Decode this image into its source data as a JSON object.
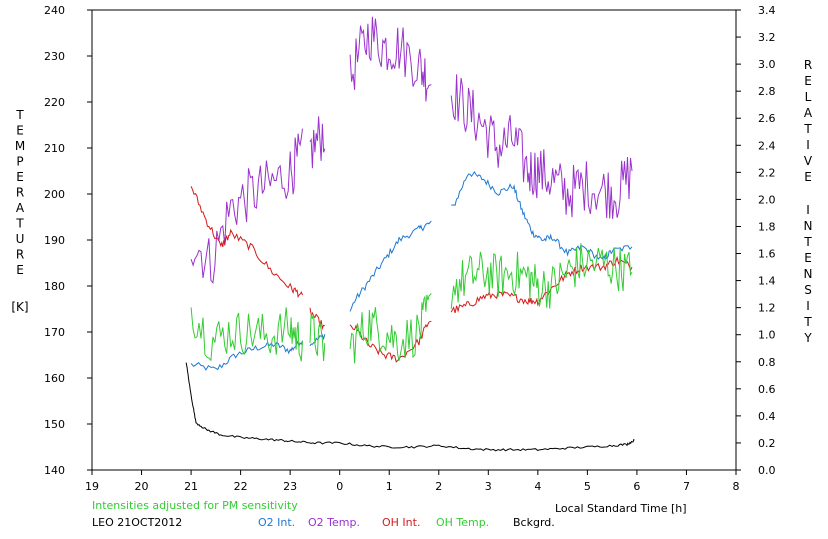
{
  "chart_data": {
    "type": "line",
    "title": "",
    "xlabel": "Local Standard Time [h]",
    "ylabel_left_letters": [
      "T",
      "E",
      "M",
      "P",
      "E",
      "R",
      "A",
      "T",
      "U",
      "R",
      "E"
    ],
    "ylabel_left_unit": "[K]",
    "ylabel_right_letters": [
      "R",
      "E",
      "L",
      "A",
      "T",
      "I",
      "V",
      "E",
      "I",
      "N",
      "T",
      "E",
      "N",
      "S",
      "I",
      "T",
      "Y"
    ],
    "x_ticks": [
      "19",
      "20",
      "21",
      "22",
      "23",
      "0",
      "1",
      "2",
      "3",
      "4",
      "5",
      "6",
      "7",
      "8"
    ],
    "xlim": [
      19,
      32
    ],
    "y_left_ticks": [
      "140",
      "150",
      "160",
      "170",
      "180",
      "190",
      "200",
      "210",
      "220",
      "230",
      "240"
    ],
    "ylim_left": [
      140,
      240
    ],
    "y_right_ticks": [
      "0.0",
      "0.2",
      "0.4",
      "0.6",
      "0.8",
      "1.0",
      "1.2",
      "1.4",
      "1.6",
      "1.8",
      "2.0",
      "2.2",
      "2.4",
      "2.6",
      "2.8",
      "3.0",
      "3.2",
      "3.4"
    ],
    "ylim_right": [
      0,
      3.4
    ],
    "note": "Intensities adjusted for PM sensitivity",
    "station_label": "LEO 21OCT2012",
    "series": [
      {
        "name": "O2 Int.",
        "axis": "right",
        "color": "#1f78d1",
        "noise": 0.025,
        "x": [
          21.0,
          21.5,
          21.9,
          22.3,
          22.7,
          23.0,
          23.2,
          23.45,
          23.7,
          24.0,
          24.3,
          24.6,
          24.9,
          25.2,
          25.6,
          25.8,
          26.3,
          26.6,
          26.9,
          27.2,
          27.5,
          27.7,
          27.9,
          28.1,
          28.3,
          28.6,
          28.9,
          29.3,
          29.5,
          29.9
        ],
        "y": [
          0.78,
          0.74,
          0.85,
          0.9,
          0.93,
          0.88,
          0.95,
          0.94,
          1.0,
          1.0,
          1.25,
          1.4,
          1.55,
          1.7,
          1.78,
          1.82,
          1.95,
          2.2,
          2.15,
          2.05,
          2.1,
          1.9,
          1.75,
          1.7,
          1.72,
          1.6,
          1.65,
          1.55,
          1.62,
          1.65
        ]
      },
      {
        "name": "O2 Temp.",
        "axis": "left",
        "color": "#9933cc",
        "noise": 6,
        "x": [
          21.0,
          21.4,
          21.8,
          22.2,
          22.6,
          23.0,
          23.2,
          23.45,
          23.7,
          24.0,
          24.3,
          24.6,
          24.9,
          25.2,
          25.6,
          25.8,
          26.3,
          26.6,
          26.9,
          27.2,
          27.5,
          27.8,
          28.0,
          28.3,
          28.6,
          28.9,
          29.3,
          29.6,
          29.9
        ],
        "y": [
          190,
          185,
          197,
          200,
          202,
          205,
          208,
          210,
          214,
          216,
          228,
          235,
          232,
          232,
          228,
          225,
          222,
          218,
          215,
          210,
          212,
          205,
          205,
          203,
          200,
          202,
          201,
          200,
          205
        ]
      },
      {
        "name": "OH Int.",
        "axis": "right",
        "color": "#d41a1a",
        "noise": 0.03,
        "x": [
          21.0,
          21.3,
          21.6,
          21.8,
          22.2,
          22.6,
          23.0,
          23.2,
          23.45,
          23.7,
          24.0,
          24.3,
          24.6,
          24.9,
          25.2,
          25.6,
          25.8,
          26.3,
          26.6,
          26.9,
          27.2,
          27.5,
          27.8,
          28.0,
          28.3,
          28.6,
          28.9,
          29.3,
          29.6,
          29.9
        ],
        "y": [
          2.1,
          1.85,
          1.65,
          1.75,
          1.65,
          1.48,
          1.35,
          1.3,
          1.15,
          1.05,
          1.05,
          1.05,
          0.92,
          0.85,
          0.82,
          0.95,
          1.1,
          1.18,
          1.22,
          1.28,
          1.3,
          1.28,
          1.25,
          1.25,
          1.35,
          1.45,
          1.5,
          1.5,
          1.55,
          1.5
        ]
      },
      {
        "name": "OH Temp.",
        "axis": "left",
        "color": "#33cc33",
        "noise": 5,
        "x": [
          21.0,
          21.4,
          21.8,
          22.2,
          22.6,
          23.0,
          23.2,
          23.45,
          23.7,
          24.0,
          24.3,
          24.6,
          24.9,
          25.2,
          25.6,
          25.8,
          26.3,
          26.6,
          26.9,
          27.2,
          27.5,
          27.8,
          28.0,
          28.3,
          28.6,
          28.9,
          29.3,
          29.6,
          29.9
        ],
        "y": [
          175,
          168,
          170,
          170,
          169,
          171,
          168,
          170,
          166,
          164,
          168,
          172,
          170,
          168,
          170,
          175,
          180,
          182,
          183,
          182,
          183,
          182,
          180,
          180,
          183,
          185,
          185,
          184,
          183
        ]
      },
      {
        "name": "Bckgrd.",
        "axis": "right",
        "color": "#000000",
        "noise": 0.008,
        "x": [
          20.9,
          21.0,
          21.1,
          21.3,
          21.6,
          22.0,
          22.4,
          22.8,
          23.1,
          23.5,
          24.0,
          24.5,
          25.0,
          25.5,
          26.0,
          26.5,
          27.0,
          27.5,
          28.0,
          28.5,
          29.0,
          29.5,
          29.8,
          29.95
        ],
        "y": [
          0.8,
          0.55,
          0.35,
          0.3,
          0.26,
          0.24,
          0.23,
          0.22,
          0.21,
          0.2,
          0.2,
          0.18,
          0.17,
          0.17,
          0.18,
          0.16,
          0.15,
          0.15,
          0.15,
          0.16,
          0.17,
          0.18,
          0.19,
          0.22
        ]
      }
    ],
    "grid": false,
    "legend_position": "bottom"
  }
}
